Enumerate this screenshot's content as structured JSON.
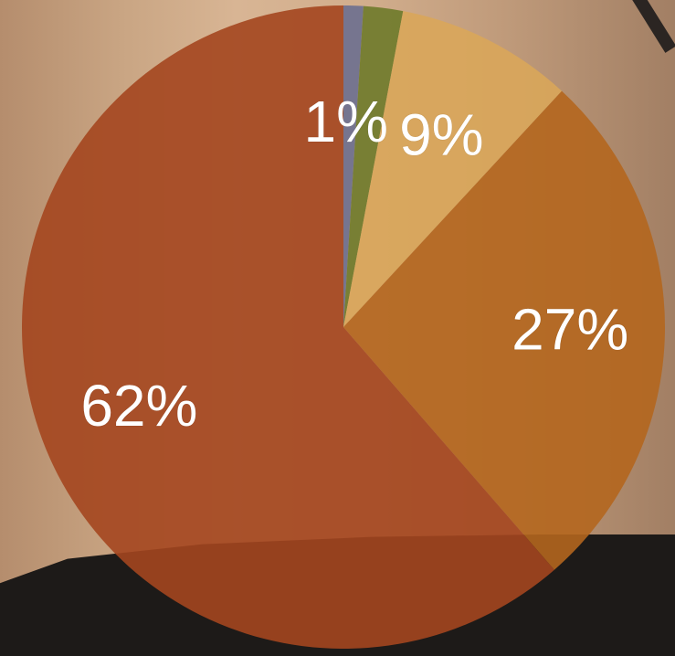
{
  "chart_data": {
    "type": "pie",
    "slices": [
      {
        "label": "1%",
        "value": 1,
        "color": "#6b6f8f"
      },
      {
        "label": "",
        "value": 2,
        "color": "#6e7a2a"
      },
      {
        "label": "9%",
        "value": 9,
        "color": "#d9a65a"
      },
      {
        "label": "27%",
        "value": 27,
        "color": "#b4661e"
      },
      {
        "label": "62%",
        "value": 62,
        "color": "#a4461f"
      }
    ]
  }
}
